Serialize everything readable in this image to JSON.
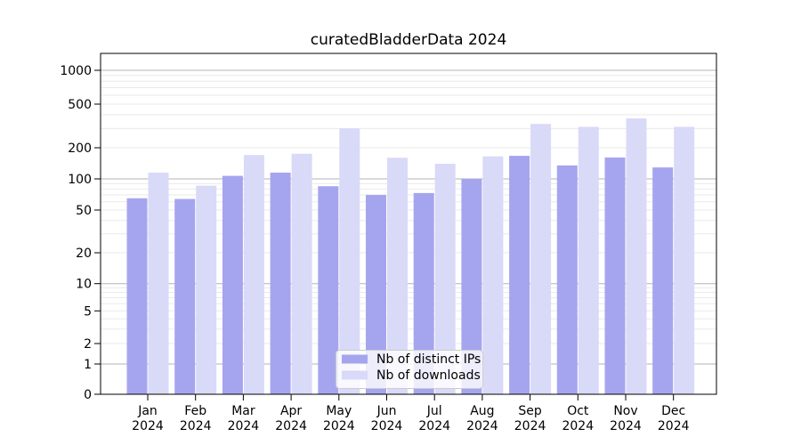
{
  "title": "curatedBladderData 2024",
  "chart_data": {
    "type": "bar",
    "title": "curatedBladderData 2024",
    "categories": [
      "Jan 2024",
      "Feb 2024",
      "Mar 2024",
      "Apr 2024",
      "May 2024",
      "Jun 2024",
      "Jul 2024",
      "Aug 2024",
      "Sep 2024",
      "Oct 2024",
      "Nov 2024",
      "Dec 2024"
    ],
    "series": [
      {
        "name": "Nb of distinct IPs",
        "color": "#a5a5ef",
        "values": [
          65,
          64,
          107,
          115,
          85,
          70,
          73,
          100,
          167,
          135,
          161,
          129
        ]
      },
      {
        "name": "Nb of downloads",
        "color": "#d9d9f8",
        "values": [
          115,
          86,
          170,
          175,
          300,
          160,
          140,
          165,
          330,
          310,
          370,
          310
        ]
      }
    ],
    "y_axis": {
      "scale": "symlog",
      "ticks": [
        0,
        1,
        2,
        5,
        10,
        20,
        50,
        100,
        200,
        500,
        1000
      ],
      "ylim": [
        0,
        1400
      ]
    },
    "xlabel": "",
    "ylabel": "",
    "grid": "horizontal major and minor",
    "legend_position": "lower center"
  },
  "colors": {
    "bar_distinct_ips": "#a5a5ef",
    "bar_downloads": "#d9d9f8",
    "grid_major": "#b3b3b3",
    "grid_minor": "#eaeaea",
    "axis": "#000000",
    "legend_border": "#cccccc",
    "legend_background": "rgba(255,255,255,0.8)"
  }
}
